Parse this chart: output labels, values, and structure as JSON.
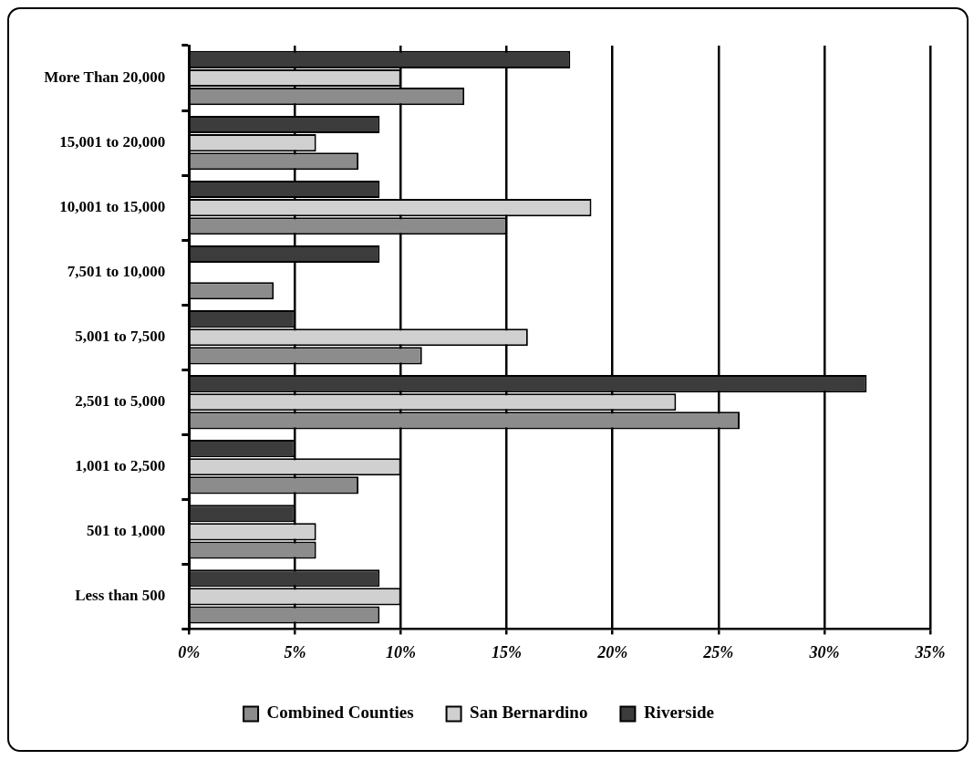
{
  "chart_data": {
    "type": "bar",
    "orientation": "horizontal",
    "categories": [
      "More Than 20,000",
      "15,001 to 20,000",
      "10,001 to 15,000",
      "7,501 to 10,000",
      "5,001 to 7,500",
      "2,501 to 5,000",
      "1,001 to 2,500",
      "501 to 1,000",
      "Less than 500"
    ],
    "series": [
      {
        "name": "Combined Counties",
        "color": "#8c8c8c",
        "values": [
          13,
          8,
          15,
          4,
          11,
          26,
          8,
          6,
          9
        ]
      },
      {
        "name": "San Bernardino",
        "color": "#d0d0d0",
        "values": [
          10,
          6,
          19,
          0,
          16,
          23,
          10,
          6,
          10
        ]
      },
      {
        "name": "Riverside",
        "color": "#3c3c3c",
        "values": [
          18,
          9,
          9,
          9,
          5,
          32,
          5,
          5,
          9
        ]
      }
    ],
    "xlim": [
      0,
      35
    ],
    "xticks": [
      {
        "value": 0,
        "label": "0%"
      },
      {
        "value": 5,
        "label": "5%"
      },
      {
        "value": 10,
        "label": "10%"
      },
      {
        "value": 15,
        "label": "15%"
      },
      {
        "value": 20,
        "label": "20%"
      },
      {
        "value": 25,
        "label": "25%"
      },
      {
        "value": 30,
        "label": "30%"
      },
      {
        "value": 35,
        "label": "35%"
      }
    ],
    "grid": "x",
    "legend": "bottom"
  }
}
